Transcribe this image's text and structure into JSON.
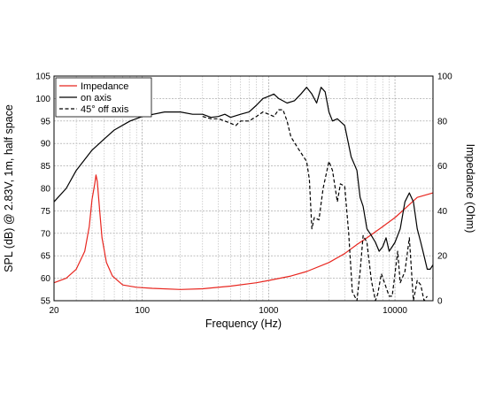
{
  "chart_data": {
    "type": "line",
    "xscale": "log",
    "xlim": [
      20,
      20000
    ],
    "ylim_left": [
      55,
      105
    ],
    "ylim_right": [
      0,
      100
    ],
    "grid": true,
    "legend_position": "top-left",
    "xlabel": "Frequency (Hz)",
    "ylabel_left": "SPL (dB) @ 2.83V, 1m, half space",
    "ylabel_right": "Impedance (Ohm)",
    "x_ticks": [
      20,
      100,
      1000,
      10000
    ],
    "x_tick_labels": [
      "20",
      "100",
      "1000",
      "10000"
    ],
    "y_left_ticks": [
      55,
      60,
      65,
      70,
      75,
      80,
      85,
      90,
      95,
      100,
      105
    ],
    "y_left_tick_labels": [
      "55",
      "60",
      "65",
      "70",
      "75",
      "80",
      "85",
      "90",
      "95",
      "100",
      "105"
    ],
    "y_right_ticks": [
      0,
      20,
      40,
      60,
      80,
      100
    ],
    "y_right_tick_labels": [
      "0",
      "20",
      "40",
      "60",
      "80",
      "100"
    ],
    "series": [
      {
        "name": "Impedance",
        "axis": "right",
        "color": "#e8261f",
        "style": "solid",
        "x": [
          20,
          25,
          30,
          35,
          38,
          40,
          42,
          43,
          44,
          46,
          48,
          52,
          58,
          70,
          90,
          120,
          200,
          300,
          500,
          800,
          1000,
          1500,
          2000,
          3000,
          4000,
          5000,
          6000,
          8000,
          10000,
          12000,
          15000,
          20000
        ],
        "y": [
          8,
          10,
          14,
          22,
          33,
          45,
          52,
          56,
          53,
          40,
          28,
          17,
          11,
          7,
          6,
          5.5,
          5,
          5.3,
          6.5,
          8,
          9,
          11,
          13,
          17,
          21,
          25,
          28,
          33,
          37,
          41,
          46,
          48
        ]
      },
      {
        "name": "on axis",
        "axis": "left",
        "color": "#000000",
        "style": "solid",
        "x": [
          20,
          25,
          30,
          40,
          50,
          60,
          80,
          100,
          150,
          200,
          250,
          300,
          350,
          400,
          450,
          500,
          600,
          700,
          800,
          900,
          1000,
          1100,
          1200,
          1400,
          1600,
          1800,
          2000,
          2200,
          2400,
          2600,
          2800,
          3000,
          3200,
          3500,
          4000,
          4500,
          5000,
          5300,
          5600,
          6000,
          6500,
          7000,
          7500,
          8000,
          8500,
          9000,
          9500,
          10000,
          11000,
          12000,
          13000,
          14000,
          15000,
          16000,
          17000,
          18000,
          19000,
          20000
        ],
        "y": [
          77,
          80,
          84,
          88.5,
          91,
          93,
          95,
          96,
          97,
          97,
          96.5,
          96.5,
          95.8,
          96,
          96.5,
          95.8,
          96.5,
          97,
          98.5,
          100,
          100.5,
          101,
          100,
          99,
          99.5,
          101,
          102.5,
          101,
          99,
          102.5,
          101.5,
          97,
          95,
          95.5,
          94,
          87,
          84,
          78,
          76,
          71,
          69.5,
          68,
          66,
          67,
          69,
          66,
          67,
          68,
          71,
          77,
          79,
          77,
          71,
          68,
          65,
          62,
          62,
          63
        ]
      },
      {
        "name": "45° off axis",
        "axis": "left",
        "color": "#000000",
        "style": "dashed",
        "x": [
          300,
          350,
          400,
          450,
          500,
          550,
          600,
          700,
          800,
          900,
          1000,
          1100,
          1200,
          1300,
          1400,
          1500,
          1700,
          2000,
          2100,
          2200,
          2300,
          2500,
          2700,
          3000,
          3200,
          3500,
          3700,
          4000,
          4300,
          4600,
          5000,
          5300,
          5600,
          6000,
          6500,
          7000,
          7300,
          7800,
          8500,
          9000,
          9500,
          10000,
          10500,
          11000,
          12000,
          13000,
          14000,
          15000,
          16000,
          17000,
          18000
        ],
        "y": [
          96,
          95.5,
          95.5,
          95,
          94.5,
          94,
          95,
          95,
          96,
          97,
          96.5,
          96,
          97.5,
          97.5,
          95,
          91.5,
          89,
          86,
          82,
          71,
          73.5,
          73,
          80,
          86,
          84,
          77,
          81,
          80.5,
          70,
          57,
          55,
          61.5,
          69.5,
          68,
          59.5,
          55,
          56.5,
          61,
          58,
          56,
          56,
          61,
          66,
          59,
          61.5,
          69,
          55,
          59.5,
          58.5,
          55,
          56
        ]
      }
    ]
  }
}
